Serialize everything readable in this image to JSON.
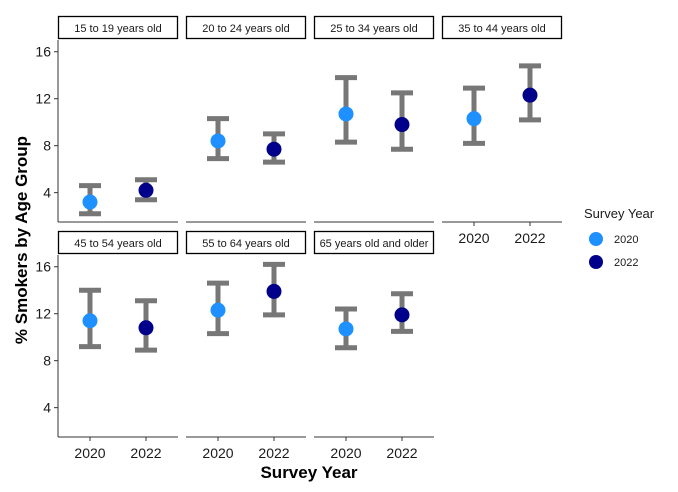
{
  "chart_data": {
    "type": "scatter",
    "subtype": "faceted point with error bars",
    "xlabel": "Survey Year",
    "ylabel": "% Smokers by Age Group",
    "categories": [
      "2020",
      "2022"
    ],
    "y_ticks": [
      4,
      8,
      12,
      16
    ],
    "ylim": [
      1.5,
      17
    ],
    "grid": false,
    "legend": {
      "title": "Survey Year",
      "position": "right",
      "entries": [
        {
          "label": "2020",
          "color": "#1E90FF"
        },
        {
          "label": "2022",
          "color": "#00008B"
        }
      ]
    },
    "errorbar_color": "#777777",
    "facets": [
      {
        "label": "15 to 19 years old",
        "points": [
          {
            "x": "2020",
            "y": 3.2,
            "lower": 2.2,
            "upper": 4.6
          },
          {
            "x": "2022",
            "y": 4.2,
            "lower": 3.4,
            "upper": 5.1
          }
        ]
      },
      {
        "label": "20 to 24 years old",
        "points": [
          {
            "x": "2020",
            "y": 8.4,
            "lower": 6.9,
            "upper": 10.3
          },
          {
            "x": "2022",
            "y": 7.7,
            "lower": 6.6,
            "upper": 9.0
          }
        ]
      },
      {
        "label": "25 to 34 years old",
        "points": [
          {
            "x": "2020",
            "y": 10.7,
            "lower": 8.3,
            "upper": 13.8
          },
          {
            "x": "2022",
            "y": 9.8,
            "lower": 7.7,
            "upper": 12.5
          }
        ]
      },
      {
        "label": "35 to 44 years old",
        "points": [
          {
            "x": "2020",
            "y": 10.3,
            "lower": 8.2,
            "upper": 12.9
          },
          {
            "x": "2022",
            "y": 12.3,
            "lower": 10.2,
            "upper": 14.8
          }
        ]
      },
      {
        "label": "45 to 54 years old",
        "points": [
          {
            "x": "2020",
            "y": 11.4,
            "lower": 9.2,
            "upper": 14.0
          },
          {
            "x": "2022",
            "y": 10.8,
            "lower": 8.9,
            "upper": 13.1
          }
        ]
      },
      {
        "label": "55 to 64 years old",
        "points": [
          {
            "x": "2020",
            "y": 12.3,
            "lower": 10.3,
            "upper": 14.6
          },
          {
            "x": "2022",
            "y": 13.9,
            "lower": 11.9,
            "upper": 16.2
          }
        ]
      },
      {
        "label": "65 years old and older",
        "points": [
          {
            "x": "2020",
            "y": 10.7,
            "lower": 9.1,
            "upper": 12.4
          },
          {
            "x": "2022",
            "y": 11.9,
            "lower": 10.5,
            "upper": 13.7
          }
        ]
      }
    ]
  }
}
